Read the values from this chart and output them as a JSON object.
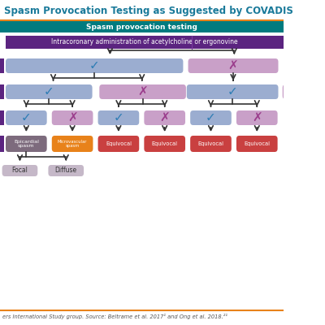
{
  "title": "Spasm Provocation Testing as Suggested by COVADIS",
  "title_color": "#1a6b8a",
  "title_fontsize": 8.5,
  "bg_color": "#ffffff",
  "top_bar_color": "#007b7f",
  "top_bar_text": "Spasm provocation testing",
  "top_bar_text_color": "#ffffff",
  "purple_bar_color": "#5b2480",
  "purple_bar_text": "Intracoronary administration of acetylcholine or ergonovine",
  "purple_bar_text_color": "#ffffff",
  "left_side_bar_color": "#5b2480",
  "check_color": "#2e7db5",
  "cross_color": "#9b3d8c",
  "blue_box_color": "#9badd0",
  "pink_box_color": "#c9a0c8",
  "gray_box_color": "#7d6b7d",
  "orange_box_color": "#e8821a",
  "red_box_color": "#c94040",
  "light_gray_box_color": "#c5b8c8",
  "footer_text": "ers International Study group. Source: Beltrame et al. 2017¹ and Ong et al. 2018.²¹",
  "footer_color": "#555555",
  "footer_fontsize": 4.8,
  "orange_line_color": "#e8821a",
  "arrow_color": "#333333",
  "teal_title_color": "#1a7a9a"
}
